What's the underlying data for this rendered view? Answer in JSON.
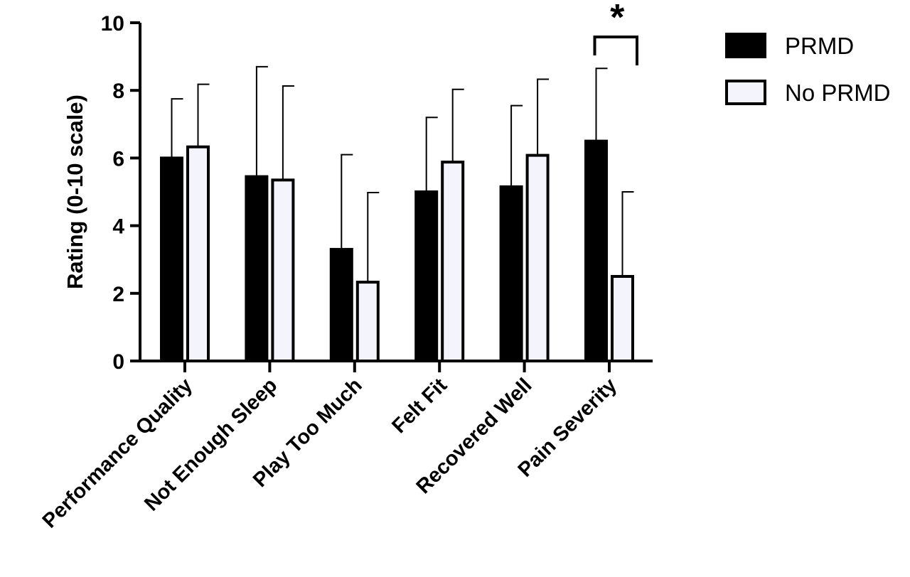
{
  "chart_data": {
    "type": "bar",
    "title": "",
    "xlabel": "",
    "ylabel": "Rating (0-10 scale)",
    "ylim": [
      0,
      10
    ],
    "yticks": [
      0,
      2,
      4,
      6,
      8,
      10
    ],
    "grid": false,
    "legend_position": "top-right",
    "categories": [
      "Performance Quality",
      "Not Enough Sleep",
      "Play Too Much",
      "Felt Fit",
      "Recovered Well",
      "Pain Severity"
    ],
    "series": [
      {
        "name": "PRMD",
        "color": "#000000",
        "values": [
          6.0,
          5.45,
          3.3,
          5.0,
          5.15,
          6.5
        ],
        "error": [
          1.75,
          3.25,
          2.8,
          2.2,
          2.4,
          2.15
        ]
      },
      {
        "name": "No PRMD",
        "color": "#f4f5fc",
        "values": [
          6.33,
          5.35,
          2.33,
          5.88,
          6.08,
          2.5
        ],
        "error": [
          1.85,
          2.78,
          2.65,
          2.15,
          2.25,
          2.5
        ]
      }
    ],
    "annotations": [
      {
        "text": "*",
        "category": "Pain Severity",
        "type": "significance-bracket"
      }
    ]
  }
}
